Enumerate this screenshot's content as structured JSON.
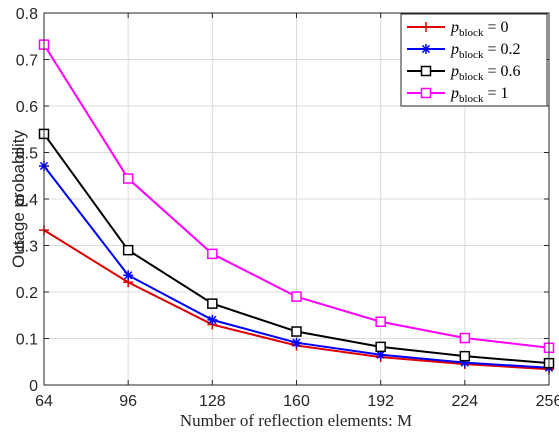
{
  "chart_data": {
    "type": "line",
    "xlabel": "Number of reflection elements: M",
    "ylabel": "Outage probability",
    "x": [
      64,
      96,
      128,
      160,
      192,
      224,
      256
    ],
    "xlim": [
      64,
      256
    ],
    "ylim": [
      0,
      0.8
    ],
    "xticks": [
      64,
      96,
      128,
      160,
      192,
      224,
      256
    ],
    "yticks": [
      0,
      0.1,
      0.2,
      0.3,
      0.4,
      0.5,
      0.6,
      0.7,
      0.8
    ],
    "xtick_labels": [
      "64",
      "96",
      "128",
      "160",
      "192",
      "224",
      "256"
    ],
    "ytick_labels": [
      "0",
      "0.1",
      "0.2",
      "0.3",
      "0.4",
      "0.5",
      "0.6",
      "0.7",
      "0.8"
    ],
    "grid": true,
    "legend_position": "top-right",
    "series": [
      {
        "name": "p_block = 0",
        "legend_base": "p",
        "legend_sub": "block",
        "legend_rest": " = 0",
        "color": "#e00000",
        "marker": "plus",
        "values": [
          0.333,
          0.221,
          0.13,
          0.085,
          0.06,
          0.045,
          0.034
        ]
      },
      {
        "name": "p_block = 0.2",
        "legend_base": "p",
        "legend_sub": "block",
        "legend_rest": " = 0.2",
        "color": "#0000ff",
        "marker": "asterisk",
        "values": [
          0.471,
          0.236,
          0.14,
          0.091,
          0.065,
          0.048,
          0.037
        ]
      },
      {
        "name": "p_block = 0.6",
        "legend_base": "p",
        "legend_sub": "block",
        "legend_rest": " = 0.6",
        "color": "#000000",
        "marker": "square",
        "values": [
          0.54,
          0.29,
          0.175,
          0.115,
          0.082,
          0.062,
          0.047
        ]
      },
      {
        "name": "p_block = 1",
        "legend_base": "p",
        "legend_sub": "block",
        "legend_rest": " = 1",
        "color": "#ff00ff",
        "marker": "square",
        "values": [
          0.732,
          0.444,
          0.282,
          0.19,
          0.136,
          0.101,
          0.08
        ]
      }
    ]
  }
}
